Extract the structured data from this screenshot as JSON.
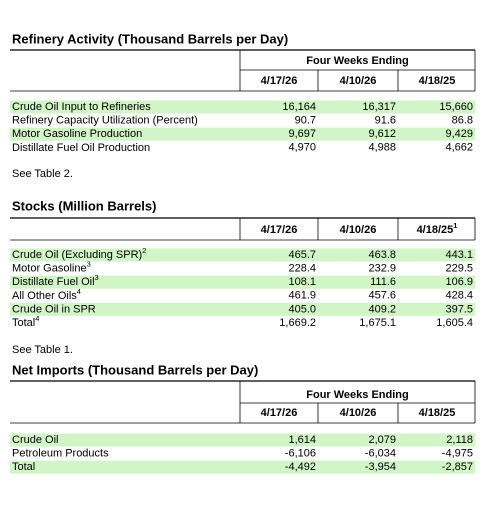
{
  "sections": [
    {
      "title": "Refinery Activity (Thousand Barrels per Day)",
      "header_group": "Four Weeks Ending",
      "columns": [
        {
          "label": "4/17/26"
        },
        {
          "label": "4/10/26"
        },
        {
          "label": "4/18/25"
        }
      ],
      "rows": [
        {
          "label": "Crude Oil Input to Refineries",
          "values": [
            "16,164",
            "16,317",
            "15,660"
          ]
        },
        {
          "label": "Refinery Capacity Utilization (Percent)",
          "values": [
            "90.7",
            "91.6",
            "86.8"
          ]
        },
        {
          "label": "Motor Gasoline Production",
          "values": [
            "9,697",
            "9,612",
            "9,429"
          ]
        },
        {
          "label": "Distillate Fuel Oil Production",
          "values": [
            "4,970",
            "4,988",
            "4,662"
          ]
        }
      ],
      "note": "See Table 2."
    },
    {
      "title": "Stocks (Million Barrels)",
      "columns": [
        {
          "label": "4/17/26"
        },
        {
          "label": "4/10/26"
        },
        {
          "label": "4/18/25",
          "sup": "1"
        }
      ],
      "rows": [
        {
          "label": "Crude Oil (Excluding SPR)",
          "sup": "2",
          "values": [
            "465.7",
            "463.8",
            "443.1"
          ]
        },
        {
          "label": "Motor Gasoline",
          "sup": "3",
          "values": [
            "228.4",
            "232.9",
            "229.5"
          ]
        },
        {
          "label": "Distillate Fuel Oil",
          "sup": "3",
          "values": [
            "108.1",
            "111.6",
            "106.9"
          ]
        },
        {
          "label": "All Other Oils",
          "sup": "4",
          "values": [
            "461.9",
            "457.6",
            "428.4"
          ]
        },
        {
          "label": "Crude Oil in SPR",
          "values": [
            "405.0",
            "409.2",
            "397.5"
          ]
        },
        {
          "label": "Total",
          "sup": "4",
          "values": [
            "1,669.2",
            "1,675.1",
            "1,605.4"
          ]
        }
      ],
      "note": "See Table 1."
    },
    {
      "title": "Net Imports (Thousand Barrels per Day)",
      "header_group": "Four Weeks Ending",
      "columns": [
        {
          "label": "4/17/26"
        },
        {
          "label": "4/10/26"
        },
        {
          "label": "4/18/25"
        }
      ],
      "rows": [
        {
          "label": "Crude Oil",
          "values": [
            "1,614",
            "2,079",
            "2,118"
          ]
        },
        {
          "label": "Petroleum Products",
          "values": [
            "-6,106",
            "-6,034",
            "-4,975"
          ]
        },
        {
          "label": "Total",
          "values": [
            "-4,492",
            "-3,954",
            "-2,857"
          ]
        }
      ]
    }
  ]
}
